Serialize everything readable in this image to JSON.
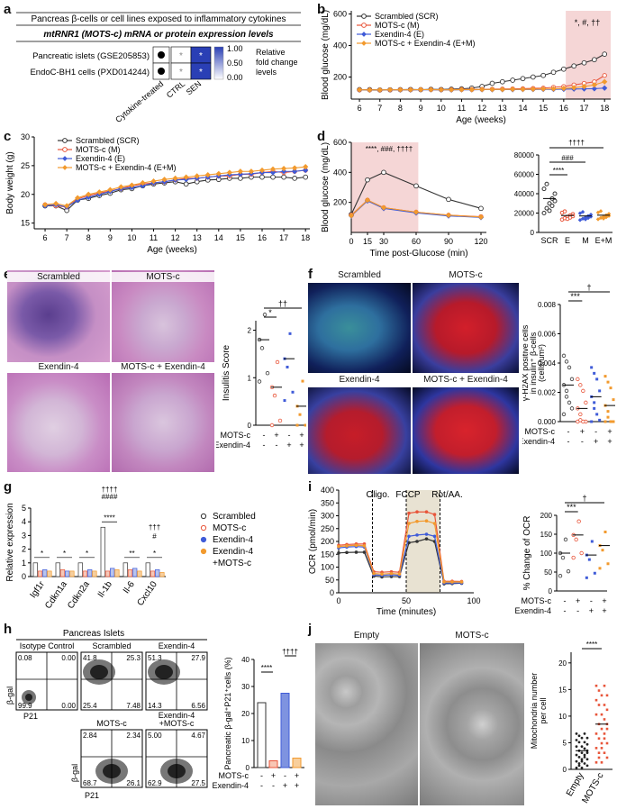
{
  "panel_labels": {
    "a": "a",
    "b": "b",
    "c": "c",
    "d": "d",
    "e": "e",
    "f": "f",
    "g": "g",
    "h": "h",
    "i": "i",
    "j": "j"
  },
  "a": {
    "title": "Pancreas β-cells or cell lines exposed to inflammatory cytokines",
    "subtitle": "mtRNR1 (MOTS-c) mRNA or protein expression levels",
    "rows": [
      "Pancreatic islets (GSE205853)",
      "EndoC-BH1 cells (PXD014244)"
    ],
    "cols": [
      "CTRL",
      "SEN"
    ],
    "row_marker_label": "Cytokine-treated",
    "cells": [
      [
        0.15,
        0.75
      ],
      [
        0.15,
        0.75
      ]
    ],
    "star": "*",
    "scale_ticks": [
      "1.00",
      "0.50",
      "0.00"
    ],
    "scale_label": [
      "Relative",
      "fold change",
      "levels"
    ]
  },
  "b": {
    "ylabel": "Blood glucose (mg/dL)",
    "xlabel": "Age (weeks)",
    "legend": [
      "Scrambled (SCR)",
      "MOTS-c (M)",
      "Exendin-4 (E)",
      "MOTS-c + Exendin-4 (E+M)"
    ],
    "yticks": [
      "200",
      "400",
      "600"
    ],
    "xticks": [
      "6",
      "7",
      "8",
      "9",
      "10",
      "11",
      "12",
      "13",
      "14",
      "15",
      "16",
      "17",
      "18"
    ],
    "annot": "*, #, ††",
    "chart_data": {
      "type": "line",
      "x": [
        6,
        6.5,
        7,
        7.5,
        8,
        8.5,
        9,
        9.5,
        10,
        10.5,
        11,
        11.5,
        12,
        12.5,
        13,
        13.5,
        14,
        14.5,
        15,
        15.5,
        16,
        16.5,
        17,
        17.5,
        18
      ],
      "ylim": [
        60,
        700
      ],
      "series": [
        {
          "name": "Scrambled (SCR)",
          "values": [
            120,
            120,
            118,
            119,
            120,
            121,
            120,
            122,
            121,
            123,
            125,
            130,
            140,
            160,
            170,
            180,
            190,
            200,
            210,
            230,
            250,
            270,
            290,
            310,
            345
          ]
        },
        {
          "name": "MOTS-c (M)",
          "values": [
            118,
            118,
            117,
            118,
            119,
            119,
            120,
            120,
            119,
            120,
            121,
            121,
            122,
            123,
            124,
            125,
            126,
            128,
            130,
            135,
            140,
            150,
            160,
            170,
            210
          ]
        },
        {
          "name": "Exendin-4 (E)",
          "values": [
            118,
            117,
            117,
            118,
            118,
            118,
            119,
            119,
            118,
            118,
            119,
            119,
            120,
            120,
            120,
            120,
            121,
            121,
            122,
            122,
            123,
            124,
            125,
            126,
            130
          ]
        },
        {
          "name": "MOTS-c + Exendin-4 (E+M)",
          "values": [
            119,
            118,
            118,
            119,
            119,
            119,
            120,
            120,
            119,
            119,
            120,
            120,
            121,
            121,
            121,
            122,
            122,
            123,
            124,
            125,
            128,
            132,
            140,
            150,
            170
          ]
        }
      ]
    }
  },
  "c": {
    "ylabel": "Body weight (g)",
    "xlabel": "Age (weeks)",
    "legend": [
      "Scrambled (SCR)",
      "MOTS-c (M)",
      "Exendin-4 (E)",
      "MOTS-c + Exendin-4 (E+M)"
    ],
    "yticks": [
      "15",
      "20",
      "25",
      "30"
    ],
    "xticks": [
      "6",
      "7",
      "8",
      "9",
      "10",
      "11",
      "12",
      "13",
      "14",
      "15",
      "16",
      "17",
      "18"
    ],
    "chart_data": {
      "type": "line",
      "x": [
        6,
        6.5,
        7,
        7.5,
        8,
        8.5,
        9,
        9.5,
        10,
        10.5,
        11,
        11.5,
        12,
        12.5,
        13,
        13.5,
        14,
        14.5,
        15,
        15.5,
        16,
        16.5,
        17,
        17.5,
        18
      ],
      "ylim": [
        14,
        30
      ],
      "series": [
        {
          "name": "Scrambled (SCR)",
          "values": [
            18.0,
            18.0,
            17.2,
            19.0,
            19.3,
            19.8,
            20.2,
            20.8,
            21.0,
            21.5,
            21.8,
            22.0,
            22.2,
            21.8,
            22.2,
            22.5,
            22.6,
            22.8,
            22.8,
            23.0,
            23.0,
            23.0,
            23.0,
            22.8,
            23.0
          ]
        },
        {
          "name": "MOTS-c (M)",
          "values": [
            18.2,
            18.0,
            17.8,
            19.2,
            19.8,
            20.2,
            20.6,
            21.0,
            21.5,
            21.8,
            22.0,
            22.2,
            22.5,
            22.8,
            22.8,
            23.0,
            23.2,
            23.2,
            23.5,
            23.5,
            23.8,
            24.0,
            23.8,
            24.0,
            24.2
          ]
        },
        {
          "name": "Exendin-4 (E)",
          "values": [
            18.0,
            18.2,
            17.8,
            19.0,
            19.5,
            20.0,
            20.5,
            21.0,
            21.2,
            21.5,
            22.0,
            22.2,
            22.5,
            22.6,
            22.8,
            23.0,
            23.2,
            23.4,
            23.5,
            23.6,
            23.8,
            23.8,
            24.0,
            24.0,
            24.2
          ]
        },
        {
          "name": "MOTS-c + Exendin-4 (E+M)",
          "values": [
            18.2,
            18.4,
            18.0,
            19.4,
            20.0,
            20.4,
            20.8,
            21.3,
            21.6,
            22.0,
            22.3,
            22.6,
            22.8,
            23.0,
            23.2,
            23.4,
            23.6,
            23.8,
            24.0,
            24.0,
            24.2,
            24.4,
            24.5,
            24.6,
            24.8
          ]
        }
      ]
    }
  },
  "d": {
    "ylabel": "Blood glucose (mg/dL)",
    "xlabel": "Time post-Glucose (min)",
    "yticks": [
      "200",
      "400",
      "600"
    ],
    "xticks": [
      "0",
      "15",
      "30",
      "60",
      "90",
      "120"
    ],
    "annot": "****, ###, ††††",
    "chart_data": {
      "type": "line",
      "x": [
        0,
        15,
        30,
        60,
        90,
        120
      ],
      "ylim": [
        0,
        600
      ],
      "series": [
        {
          "name": "SCR",
          "values": [
            120,
            350,
            400,
            310,
            220,
            160
          ]
        },
        {
          "name": "M",
          "values": [
            115,
            215,
            165,
            135,
            115,
            105
          ]
        },
        {
          "name": "E",
          "values": [
            110,
            210,
            160,
            130,
            110,
            100
          ]
        },
        {
          "name": "E+M",
          "values": [
            112,
            215,
            165,
            135,
            115,
            103
          ]
        }
      ]
    },
    "auc": {
      "yticks": [
        "0",
        "20000",
        "40000",
        "60000",
        "80000"
      ],
      "categories": [
        "SCR",
        "E",
        "M",
        "E+M"
      ],
      "means": [
        35000,
        17500,
        17000,
        17800
      ],
      "sig": [
        "****",
        "###",
        "††††"
      ]
    }
  },
  "e": {
    "labels": [
      "Scrambled",
      "MOTS-c",
      "Exendin-4",
      "MOTS-c + Exendin-4"
    ],
    "ylabel": "Insulitis Score",
    "yticks": [
      "0",
      "1",
      "2"
    ],
    "row_labels": [
      "MOTS-c",
      "Exendin-4"
    ],
    "signs": [
      [
        "-",
        "+",
        "-",
        "+"
      ],
      [
        "-",
        "-",
        "+",
        "+"
      ]
    ],
    "sig": [
      "*",
      "††"
    ],
    "chart_data": {
      "type": "scatter",
      "categories": [
        "SCR",
        "M",
        "E",
        "E+M"
      ],
      "values": [
        1.8,
        0.8,
        1.4,
        0.4
      ]
    }
  },
  "f": {
    "labels": [
      "Scrambled",
      "MOTS-c",
      "Exendin-4",
      "MOTS-c + Exendin-4"
    ],
    "ylabel": [
      "γ-H2AX positive cells",
      "in insulin⁺ β-cells",
      "(cells/um²)"
    ],
    "yticks": [
      "0.000",
      "0.002",
      "0.004",
      "0.006",
      "0.008"
    ],
    "row_labels": [
      "MOTS-c",
      "Exendin-4"
    ],
    "signs": [
      [
        "-",
        "+",
        "-",
        "+"
      ],
      [
        "-",
        "-",
        "+",
        "+"
      ]
    ],
    "sig": [
      "***",
      "†"
    ],
    "chart_data": {
      "type": "scatter",
      "categories": [
        "SCR",
        "M",
        "E",
        "E+M"
      ],
      "values": [
        0.0025,
        0.0009,
        0.0017,
        0.0011
      ]
    }
  },
  "g": {
    "ylabel": "Relative expression",
    "yticks": [
      "0",
      "1",
      "2",
      "3",
      "4",
      "5"
    ],
    "genes": [
      "Igf1r",
      "Cdkn1a",
      "Cdkn2a",
      "Il-1b",
      "Il-6",
      "Cxcl10"
    ],
    "legend": [
      "Scrambled",
      "MOTS-c",
      "Exendin-4",
      "Exendin-4",
      "+MOTS-c"
    ],
    "sig": [
      "*",
      "*",
      "*",
      "****",
      "**",
      "*"
    ],
    "sig_top": [
      "††††",
      "####",
      "††",
      "†††",
      "#"
    ],
    "chart_data": {
      "type": "bar",
      "categories": [
        "Igf1r",
        "Cdkn1a",
        "Cdkn2a",
        "Il-1b",
        "Il-6",
        "Cxcl10"
      ],
      "series": [
        {
          "name": "Scrambled",
          "values": [
            1.0,
            1.0,
            1.0,
            3.6,
            1.0,
            1.0
          ]
        },
        {
          "name": "MOTS-c",
          "values": [
            0.4,
            0.5,
            0.4,
            0.4,
            0.5,
            0.4
          ]
        },
        {
          "name": "Exendin-4",
          "values": [
            0.5,
            0.4,
            0.5,
            0.6,
            0.6,
            0.5
          ]
        },
        {
          "name": "Exendin-4 +MOTS-c",
          "values": [
            0.4,
            0.4,
            0.4,
            0.5,
            0.4,
            0.3
          ]
        }
      ]
    }
  },
  "i": {
    "ylabel": "OCR (pmol/min)",
    "xlabel": "Time (minutes)",
    "yticks": [
      "0",
      "50",
      "100",
      "150",
      "200",
      "250",
      "300",
      "350",
      "400"
    ],
    "xticks": [
      "0",
      "50",
      "100"
    ],
    "injections": [
      "Oligo.",
      "FCCP",
      "Rot/AA."
    ],
    "chart_data": {
      "type": "line",
      "x": [
        0,
        6,
        13,
        19,
        26,
        32,
        39,
        45,
        52,
        58,
        65,
        71,
        78,
        84,
        91
      ],
      "ylim": [
        0,
        400
      ],
      "series": [
        {
          "name": "SCR",
          "values": [
            155,
            157,
            158,
            158,
            65,
            62,
            63,
            63,
            195,
            200,
            210,
            200,
            35,
            36,
            37
          ]
        },
        {
          "name": "M",
          "values": [
            185,
            188,
            190,
            190,
            82,
            80,
            82,
            80,
            310,
            315,
            315,
            305,
            45,
            45,
            44
          ]
        },
        {
          "name": "E",
          "values": [
            175,
            178,
            180,
            178,
            70,
            68,
            70,
            68,
            220,
            225,
            228,
            220,
            38,
            38,
            38
          ]
        },
        {
          "name": "E+M",
          "values": [
            180,
            183,
            185,
            183,
            75,
            73,
            75,
            73,
            270,
            278,
            280,
            270,
            42,
            42,
            42
          ]
        }
      ]
    },
    "pct": {
      "ylabel": "% Change of OCR",
      "yticks": [
        "0",
        "50",
        "100",
        "150",
        "200"
      ],
      "row_labels": [
        "MOTS-c",
        "Exendin-4"
      ],
      "signs": [
        [
          "-",
          "+",
          "-",
          "+"
        ],
        [
          "-",
          "-",
          "+",
          "+"
        ]
      ],
      "sig": [
        "***",
        "†"
      ],
      "means": [
        100,
        148,
        95,
        120
      ]
    }
  },
  "h": {
    "title": "Pancreas Islets",
    "plots": [
      {
        "name": "Isotype Control",
        "q": [
          "0.08",
          "0.00",
          "99.9",
          "0.00"
        ]
      },
      {
        "name": "Scrambled",
        "q": [
          "41.8",
          "25.3",
          "25.4",
          "7.48"
        ]
      },
      {
        "name": "Exendin-4",
        "q": [
          "51.3",
          "27.9",
          "14.3",
          "6.56"
        ]
      },
      {
        "name": "MOTS-c",
        "q": [
          "2.84",
          "2.34",
          "68.7",
          "26.1"
        ]
      },
      {
        "name": "Exendin-4\n+MOTS-c",
        "q": [
          "5.00",
          "4.67",
          "62.9",
          "27.5"
        ]
      }
    ],
    "yaxis": "β-gal",
    "xaxis": "P21",
    "bar_ylabel": "Pancreatic β-gal⁺P21⁺cells (%)",
    "yticks": [
      "0",
      "10",
      "20",
      "30",
      "40"
    ],
    "row_labels": [
      "MOTS-c",
      "Exendin-4"
    ],
    "signs": [
      [
        "-",
        "+",
        "-",
        "+"
      ],
      [
        "-",
        "-",
        "+",
        "+"
      ]
    ],
    "sig": [
      "****",
      "††††"
    ],
    "chart_data": {
      "type": "bar",
      "categories": [
        "SCR",
        "M",
        "E",
        "E+M"
      ],
      "values": [
        24,
        2.5,
        27.5,
        3.5
      ]
    }
  },
  "j": {
    "labels": [
      "Empty",
      "MOTS-c"
    ],
    "ylabel": [
      "Mitochondria number",
      "per cell"
    ],
    "yticks": [
      "0",
      "5",
      "10",
      "15",
      "20"
    ],
    "sig": "****",
    "chart_data": {
      "type": "scatter",
      "categories": [
        "Empty",
        "MOTS-c"
      ],
      "values": [
        3.5,
        8.5
      ]
    }
  },
  "colors": {
    "scr": "#333333",
    "mots": "#e8553a",
    "ex": "#3f5bd8",
    "em": "#f29a2e",
    "shade": "#f5d6d6",
    "fccp": "#e8e2d2"
  }
}
